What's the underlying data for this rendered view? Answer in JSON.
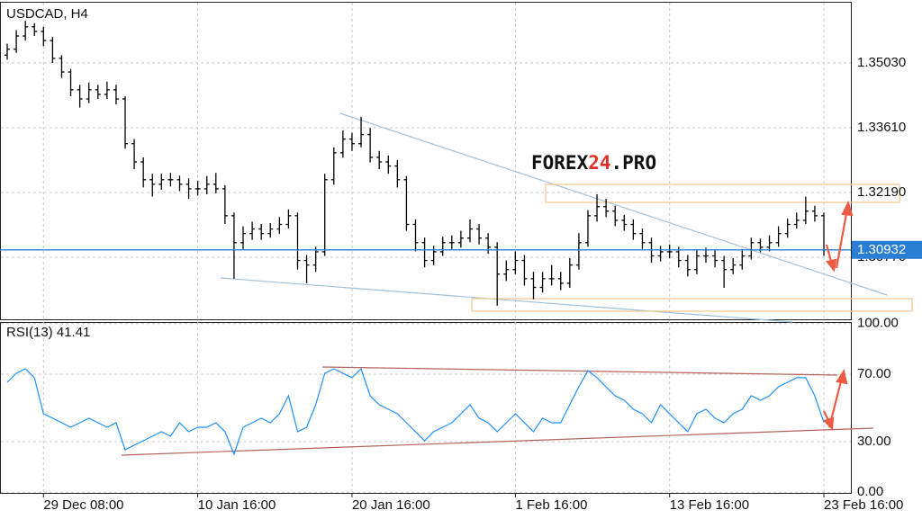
{
  "watermark": [
    "FOREX",
    "24",
    ".PRO"
  ],
  "chart_data": [
    {
      "type": "ohlc",
      "title": "USDCAD, H4",
      "color": "#000000",
      "open": [
        1.352,
        1.3533,
        1.3562,
        1.3582,
        1.3572,
        1.3552,
        1.3513,
        1.3483,
        1.3444,
        1.3424,
        1.3444,
        1.3434,
        1.3444,
        1.3424,
        1.3326,
        1.3286,
        1.3247,
        1.3237,
        1.3247,
        1.3247,
        1.3237,
        1.3227,
        1.3227,
        1.3237,
        1.3227,
        1.3168,
        1.3109,
        1.3129,
        1.3139,
        1.3129,
        1.3139,
        1.3149,
        1.3168,
        1.307,
        1.306,
        1.3089,
        1.3247,
        1.3306,
        1.3336,
        1.3326,
        1.3346,
        1.3296,
        1.3286,
        1.3277,
        1.3247,
        1.3149,
        1.3109,
        1.307,
        1.3089,
        1.3109,
        1.3109,
        1.3119,
        1.3139,
        1.3119,
        1.3099,
        1.304,
        1.305,
        1.307,
        1.303,
        1.3011,
        1.303,
        1.303,
        1.302,
        1.306,
        1.3109,
        1.3168,
        1.3188,
        1.3178,
        1.3158,
        1.3149,
        1.3129,
        1.3109,
        1.308,
        1.3089,
        1.3089,
        1.307,
        1.305,
        1.308,
        1.308,
        1.307,
        1.305,
        1.306,
        1.308,
        1.3109,
        1.3099,
        1.3109,
        1.3129,
        1.3149,
        1.3158,
        1.3178,
        1.3168
      ],
      "high": [
        1.3545,
        1.3575,
        1.3595,
        1.359,
        1.3582,
        1.356,
        1.352,
        1.349,
        1.3455,
        1.346,
        1.3455,
        1.3462,
        1.3455,
        1.343,
        1.3336,
        1.3296,
        1.326,
        1.326,
        1.3262,
        1.3256,
        1.325,
        1.3245,
        1.3255,
        1.3262,
        1.3235,
        1.3175,
        1.3145,
        1.3155,
        1.315,
        1.3152,
        1.3165,
        1.3182,
        1.3175,
        1.3082,
        1.31,
        1.326,
        1.3318,
        1.3355,
        1.335,
        1.3385,
        1.336,
        1.331,
        1.33,
        1.329,
        1.3255,
        1.316,
        1.312,
        1.3102,
        1.3122,
        1.3125,
        1.3135,
        1.316,
        1.315,
        1.313,
        1.311,
        1.307,
        1.309,
        1.3082,
        1.3045,
        1.3045,
        1.306,
        1.3045,
        1.3075,
        1.313,
        1.318,
        1.3215,
        1.3205,
        1.319,
        1.317,
        1.316,
        1.314,
        1.312,
        1.3102,
        1.3105,
        1.31,
        1.3082,
        1.3095,
        1.3098,
        1.3092,
        1.308,
        1.3075,
        1.3095,
        1.312,
        1.3118,
        1.3125,
        1.3145,
        1.3162,
        1.3175,
        1.321,
        1.319,
        1.3175
      ],
      "low": [
        1.351,
        1.3525,
        1.3552,
        1.3562,
        1.354,
        1.3503,
        1.347,
        1.343,
        1.3405,
        1.3415,
        1.3424,
        1.3424,
        1.3412,
        1.3315,
        1.327,
        1.323,
        1.321,
        1.3225,
        1.3232,
        1.3222,
        1.3205,
        1.3212,
        1.3215,
        1.3217,
        1.315,
        1.303,
        1.3095,
        1.3115,
        1.3115,
        1.312,
        1.3128,
        1.314,
        1.305,
        1.302,
        1.3045,
        1.308,
        1.3236,
        1.3295,
        1.331,
        1.3318,
        1.3285,
        1.327,
        1.326,
        1.323,
        1.3135,
        1.309,
        1.3055,
        1.306,
        1.308,
        1.3095,
        1.3098,
        1.311,
        1.3105,
        1.3085,
        1.2971,
        1.3025,
        1.304,
        1.3015,
        1.2985,
        1.3,
        1.3015,
        1.3005,
        1.301,
        1.305,
        1.31,
        1.3155,
        1.3165,
        1.3145,
        1.3135,
        1.3115,
        1.3095,
        1.3065,
        1.3068,
        1.3075,
        1.3055,
        1.3035,
        1.304,
        1.3065,
        1.3055,
        1.301,
        1.304,
        1.305,
        1.3072,
        1.3088,
        1.309,
        1.31,
        1.312,
        1.314,
        1.315,
        1.3155,
        1.308
      ],
      "close": [
        1.3533,
        1.3562,
        1.3582,
        1.3572,
        1.3552,
        1.3513,
        1.3483,
        1.3444,
        1.3424,
        1.3444,
        1.3434,
        1.3444,
        1.3424,
        1.3326,
        1.3286,
        1.3247,
        1.3237,
        1.3247,
        1.3247,
        1.3237,
        1.3227,
        1.3227,
        1.3237,
        1.3227,
        1.3168,
        1.3109,
        1.3129,
        1.3139,
        1.3129,
        1.3139,
        1.3149,
        1.3168,
        1.307,
        1.306,
        1.3089,
        1.3247,
        1.3306,
        1.3336,
        1.3326,
        1.3346,
        1.3296,
        1.3286,
        1.3277,
        1.3247,
        1.3149,
        1.3109,
        1.307,
        1.3089,
        1.3109,
        1.3109,
        1.3119,
        1.3139,
        1.3119,
        1.3099,
        1.304,
        1.305,
        1.307,
        1.303,
        1.3011,
        1.303,
        1.303,
        1.302,
        1.306,
        1.3109,
        1.3168,
        1.3188,
        1.3178,
        1.3158,
        1.3149,
        1.3129,
        1.3109,
        1.308,
        1.3089,
        1.3089,
        1.307,
        1.305,
        1.308,
        1.308,
        1.307,
        1.305,
        1.306,
        1.308,
        1.3109,
        1.3099,
        1.3109,
        1.3129,
        1.3149,
        1.3158,
        1.3178,
        1.3168,
        1.3093
      ],
      "ylim": [
        1.2941,
        1.3631
      ],
      "yticks": [
        {
          "value": 1.3503,
          "label": "1.35030"
        },
        {
          "value": 1.3361,
          "label": "1.33610"
        },
        {
          "value": 1.3219,
          "label": "1.32190"
        },
        {
          "value": 1.3077,
          "label": "1.30770"
        }
      ],
      "current_price": 1.30932,
      "current_price_color": "#2a7fd4",
      "grid": true
    },
    {
      "type": "line",
      "title": "RSI(13) 41.41",
      "color": "#1e90ff",
      "values": [
        65.2,
        70.5,
        73.2,
        67.9,
        46.5,
        43.9,
        41.2,
        38.5,
        41.2,
        43.9,
        41.2,
        38.5,
        41.2,
        25.2,
        27.9,
        30.5,
        33.2,
        35.9,
        33.2,
        41.2,
        35.9,
        38.5,
        38.5,
        41.2,
        35.9,
        22.5,
        38.5,
        41.2,
        43.9,
        41.2,
        46.5,
        57.2,
        35.9,
        38.5,
        51.9,
        70.5,
        73.2,
        70.5,
        67.9,
        73.2,
        57.2,
        51.9,
        49.2,
        46.5,
        41.2,
        35.9,
        30.5,
        35.9,
        38.5,
        41.2,
        46.5,
        51.9,
        43.9,
        41.2,
        35.9,
        41.2,
        46.5,
        41.2,
        35.9,
        43.9,
        41.2,
        41.2,
        51.9,
        62.5,
        72.1,
        67.9,
        62.5,
        57.2,
        54.5,
        49.2,
        46.5,
        41.2,
        51.9,
        46.5,
        41.2,
        35.9,
        46.5,
        49.2,
        43.9,
        41.2,
        46.5,
        49.2,
        57.2,
        54.5,
        57.2,
        62.5,
        65.2,
        67.9,
        67.9,
        57.2,
        41.41
      ],
      "ylim": [
        -0.4,
        100.9
      ],
      "yticks": [
        {
          "value": 100,
          "label": "100.00"
        },
        {
          "value": 70,
          "label": "70.00"
        },
        {
          "value": 30,
          "label": "30.00"
        },
        {
          "value": 0,
          "label": "0.00"
        }
      ],
      "xticks": [
        {
          "value": 4,
          "label": "29 Dec 08:00"
        },
        {
          "value": 21,
          "label": "10 Jan 16:00"
        },
        {
          "value": 38,
          "label": "20 Jan 16:00"
        },
        {
          "value": 56,
          "label": "1 Feb 16:00"
        },
        {
          "value": 73,
          "label": "13 Feb 16:00"
        },
        {
          "value": 90,
          "label": "23 Feb 16:00"
        }
      ],
      "grid": true
    }
  ]
}
